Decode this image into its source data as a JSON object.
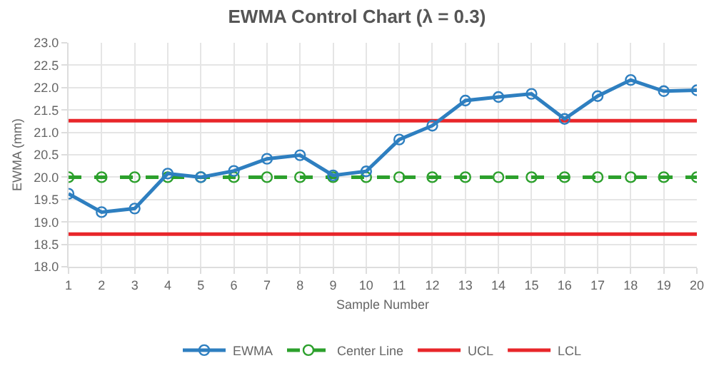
{
  "chart_data": {
    "type": "line",
    "title": "EWMA Control Chart (λ = 0.3)",
    "xlabel": "Sample Number",
    "ylabel": "EWMA (mm)",
    "x": [
      1,
      2,
      3,
      4,
      5,
      6,
      7,
      8,
      9,
      10,
      11,
      12,
      13,
      14,
      15,
      16,
      17,
      18,
      19,
      20
    ],
    "series": [
      {
        "name": "EWMA",
        "color": "#2e7fc0",
        "marker": "circle",
        "line_style": "solid",
        "values": [
          19.63,
          19.22,
          19.3,
          20.08,
          20.0,
          20.14,
          20.41,
          20.49,
          20.04,
          20.13,
          20.84,
          21.15,
          21.71,
          21.79,
          21.86,
          21.3,
          21.81,
          22.17,
          21.92,
          21.94
        ]
      },
      {
        "name": "Center Line",
        "color": "#2ca02c",
        "marker": "circle",
        "line_style": "dashed",
        "values": [
          20,
          20,
          20,
          20,
          20,
          20,
          20,
          20,
          20,
          20,
          20,
          20,
          20,
          20,
          20,
          20,
          20,
          20,
          20,
          20
        ]
      },
      {
        "name": "UCL",
        "color": "#e8262a",
        "marker": "none",
        "line_style": "solid",
        "values": [
          21.26,
          21.26,
          21.26,
          21.26,
          21.26,
          21.26,
          21.26,
          21.26,
          21.26,
          21.26,
          21.26,
          21.26,
          21.26,
          21.26,
          21.26,
          21.26,
          21.26,
          21.26,
          21.26,
          21.26
        ]
      },
      {
        "name": "LCL",
        "color": "#e8262a",
        "marker": "none",
        "line_style": "solid",
        "values": [
          18.73,
          18.73,
          18.73,
          18.73,
          18.73,
          18.73,
          18.73,
          18.73,
          18.73,
          18.73,
          18.73,
          18.73,
          18.73,
          18.73,
          18.73,
          18.73,
          18.73,
          18.73,
          18.73,
          18.73
        ]
      }
    ],
    "xlim": [
      1,
      20
    ],
    "xticks": [
      1,
      2,
      3,
      4,
      5,
      6,
      7,
      8,
      9,
      10,
      11,
      12,
      13,
      14,
      15,
      16,
      17,
      18,
      19,
      20
    ],
    "ylim": [
      18,
      23
    ],
    "yticks": [
      {
        "value": 18,
        "label": "18.0"
      },
      {
        "value": 18.5,
        "label": "18.5"
      },
      {
        "value": 19,
        "label": "19.0"
      },
      {
        "value": 19.5,
        "label": "19.5"
      },
      {
        "value": 20,
        "label": "20.0"
      },
      {
        "value": 20.5,
        "label": "20.5"
      },
      {
        "value": 21,
        "label": "21.0"
      },
      {
        "value": 21.5,
        "label": "21.5"
      },
      {
        "value": 22,
        "label": "22.0"
      },
      {
        "value": 22.5,
        "label": "22.5"
      },
      {
        "value": 23,
        "label": "23.0"
      }
    ],
    "grid": true,
    "legend": "bottom"
  }
}
